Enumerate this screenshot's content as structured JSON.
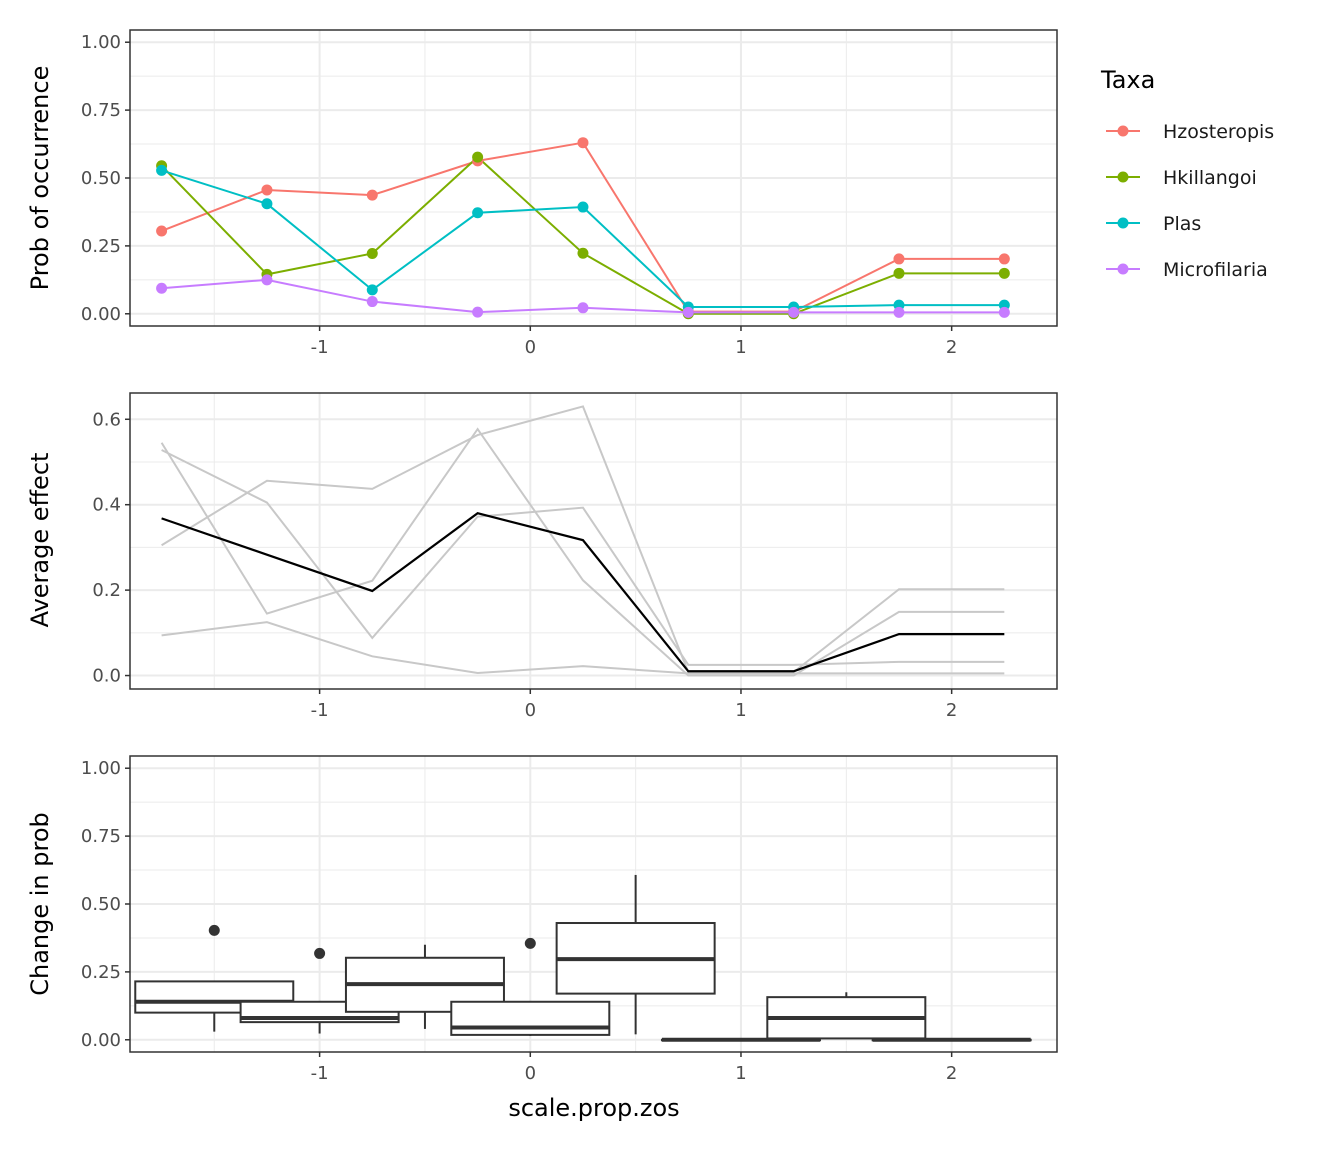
{
  "colors": {
    "Hzosterepis": "#F8766D",
    "Hkillangoi": "#7CAE00",
    "Plas": "#00BFC4",
    "Microfilaria": "#C77CFF",
    "grey_line": "#c8c8c8",
    "mean_line": "#000000",
    "box": "#333333",
    "grid_major": "#ebebeb",
    "panel_border": "#333333"
  },
  "legend": {
    "title": "Taxa",
    "position": "right",
    "items": [
      {
        "label": "Hzosteropis",
        "color": "#F8766D"
      },
      {
        "label": "Hkillangoi",
        "color": "#7CAE00"
      },
      {
        "label": "Plas",
        "color": "#00BFC4"
      },
      {
        "label": "Microfilaria",
        "color": "#C77CFF"
      }
    ]
  },
  "chart_data": [
    {
      "type": "line",
      "ylabel": "Prob of occurrence",
      "xlabel": "",
      "xlim": [
        -1.9,
        2.5
      ],
      "ylim": [
        -0.045,
        1.045
      ],
      "xticks": [
        -1,
        0,
        1,
        2
      ],
      "xtick_labels": [
        "-1",
        "0",
        "1",
        "2"
      ],
      "yticks": [
        0,
        0.25,
        0.5,
        0.75,
        1
      ],
      "ytick_labels": [
        "0.00",
        "0.25",
        "0.50",
        "0.75",
        "1.00"
      ],
      "grid": true,
      "markers": true,
      "x": [
        -1.75,
        -1.25,
        -0.75,
        -0.25,
        0.25,
        0.75,
        1.25,
        1.75,
        2.25
      ],
      "series": [
        {
          "name": "Hzosteropis",
          "values": [
            0.305,
            0.456,
            0.437,
            0.563,
            0.63,
            0.008,
            0.008,
            0.202,
            0.202
          ]
        },
        {
          "name": "Hkillangoi",
          "values": [
            0.545,
            0.145,
            0.222,
            0.577,
            0.223,
            0.0,
            0.0,
            0.149,
            0.149
          ]
        },
        {
          "name": "Plas",
          "values": [
            0.528,
            0.405,
            0.088,
            0.372,
            0.393,
            0.025,
            0.025,
            0.032,
            0.032
          ]
        },
        {
          "name": "Microfilaria",
          "values": [
            0.094,
            0.125,
            0.045,
            0.006,
            0.022,
            0.005,
            0.005,
            0.005,
            0.005
          ]
        }
      ]
    },
    {
      "type": "line",
      "ylabel": "Average effect",
      "xlabel": "",
      "xlim": [
        -1.9,
        2.5
      ],
      "ylim": [
        -0.0315,
        0.6615
      ],
      "xticks": [
        -1,
        0,
        1,
        2
      ],
      "xtick_labels": [
        "-1",
        "0",
        "1",
        "2"
      ],
      "yticks": [
        0,
        0.2,
        0.4,
        0.6
      ],
      "ytick_labels": [
        "0.0",
        "0.2",
        "0.4",
        "0.6"
      ],
      "grid": true,
      "x": [
        -1.75,
        -1.25,
        -0.75,
        -0.25,
        0.25,
        0.75,
        1.25,
        1.75,
        2.25
      ],
      "background_series": [
        {
          "values": [
            0.305,
            0.456,
            0.437,
            0.563,
            0.63,
            0.008,
            0.008,
            0.202,
            0.202
          ]
        },
        {
          "values": [
            0.545,
            0.145,
            0.222,
            0.577,
            0.223,
            0.0,
            0.0,
            0.149,
            0.149
          ]
        },
        {
          "values": [
            0.528,
            0.405,
            0.088,
            0.372,
            0.393,
            0.025,
            0.025,
            0.032,
            0.032
          ]
        },
        {
          "values": [
            0.094,
            0.125,
            0.045,
            0.006,
            0.022,
            0.005,
            0.005,
            0.005,
            0.005
          ]
        }
      ],
      "mean_series": {
        "values": [
          0.368,
          0.283,
          0.198,
          0.38,
          0.317,
          0.01,
          0.01,
          0.097,
          0.097
        ]
      }
    },
    {
      "type": "box",
      "ylabel": "Change in prob",
      "xlabel": "scale.prop.zos",
      "xlim": [
        -1.9,
        2.5
      ],
      "ylim": [
        -0.045,
        1.045
      ],
      "xticks": [
        -1,
        0,
        1,
        2
      ],
      "xtick_labels": [
        "-1",
        "0",
        "1",
        "2"
      ],
      "yticks": [
        0,
        0.25,
        0.5,
        0.75,
        1
      ],
      "ytick_labels": [
        "0.00",
        "0.25",
        "0.50",
        "0.75",
        "1.00"
      ],
      "grid": true,
      "boxes": [
        {
          "x": -1.5,
          "min": 0.03,
          "q1": 0.1,
          "median": 0.14,
          "q3": 0.215,
          "max": 0.215,
          "outliers": [
            0.403
          ]
        },
        {
          "x": -1.0,
          "min": 0.023,
          "q1": 0.065,
          "median": 0.08,
          "q3": 0.14,
          "max": 0.14,
          "outliers": [
            0.318
          ]
        },
        {
          "x": -0.5,
          "min": 0.04,
          "q1": 0.103,
          "median": 0.205,
          "q3": 0.302,
          "max": 0.35,
          "outliers": []
        },
        {
          "x": 0.0,
          "min": 0.014,
          "q1": 0.018,
          "median": 0.045,
          "q3": 0.14,
          "max": 0.14,
          "outliers": [
            0.355
          ]
        },
        {
          "x": 0.5,
          "min": 0.02,
          "q1": 0.17,
          "median": 0.297,
          "q3": 0.43,
          "max": 0.607,
          "outliers": []
        },
        {
          "x": 1.0,
          "min": 0.0,
          "q1": 0.0,
          "median": 0.0,
          "q3": 0.0,
          "max": 0.0,
          "outliers": []
        },
        {
          "x": 1.5,
          "min": 0.005,
          "q1": 0.005,
          "median": 0.08,
          "q3": 0.157,
          "max": 0.175,
          "outliers": []
        },
        {
          "x": 2.0,
          "min": 0.0,
          "q1": 0.0,
          "median": 0.0,
          "q3": 0.0,
          "max": 0.0,
          "outliers": []
        }
      ]
    }
  ]
}
